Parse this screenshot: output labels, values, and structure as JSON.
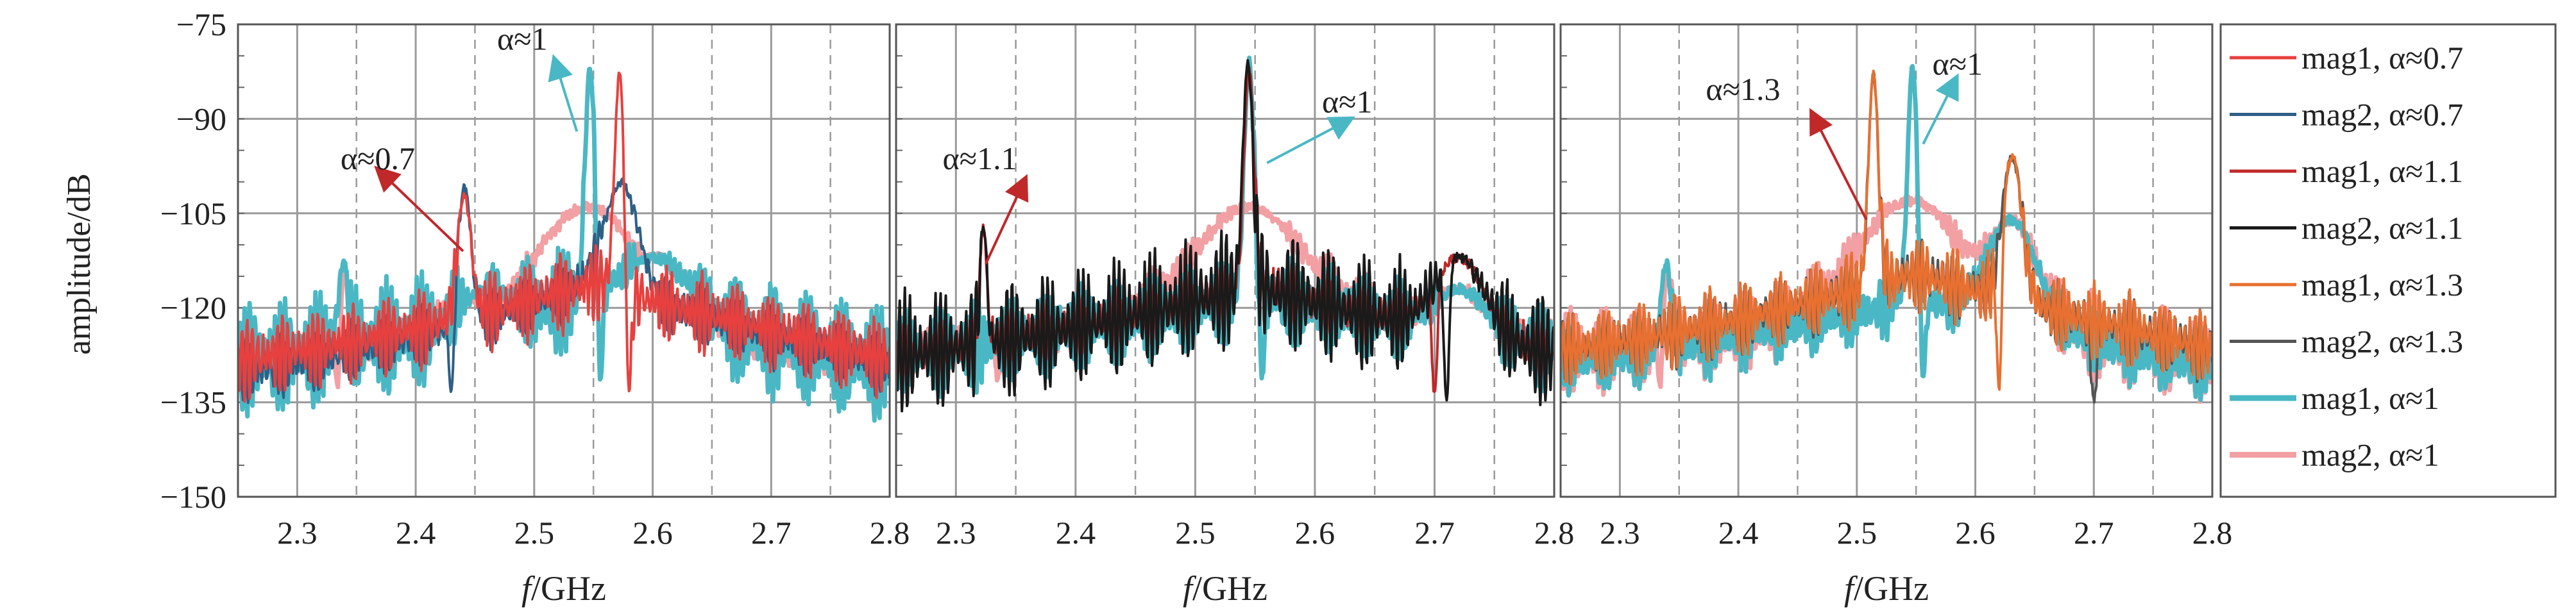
{
  "chart_data": {
    "type": "line",
    "ylabel": "amplitude/dB",
    "ylim": [
      -150,
      -75
    ],
    "yticks": [
      "−75",
      "−90",
      "−105",
      "−120",
      "−135",
      "−150"
    ],
    "yticks_values": [
      -75,
      -90,
      -105,
      -120,
      -135,
      -150
    ],
    "grid": true,
    "legend_position": "right",
    "colors": {
      "mag1_07": "#e8403e",
      "mag2_07": "#2f5f86",
      "mag1_11": "#c0282a",
      "mag2_11": "#1a1a1a",
      "mag1_13": "#e87030",
      "mag2_13": "#555555",
      "mag1_1": "#4ab8c4",
      "mag2_1": "#f2a0a4"
    },
    "legend": [
      {
        "label": "mag1, α≈0.7",
        "color": "#e8403e"
      },
      {
        "label": "mag2, α≈0.7",
        "color": "#2f5f86"
      },
      {
        "label": "mag1, α≈1.1",
        "color": "#c0282a"
      },
      {
        "label": "mag2, α≈1.1",
        "color": "#1a1a1a"
      },
      {
        "label": "mag1, α≈1.3",
        "color": "#e87030"
      },
      {
        "label": "mag2, α≈1.3",
        "color": "#555555"
      },
      {
        "label": "mag1, α≈1",
        "color": "#4ab8c4"
      },
      {
        "label": "mag2, α≈1",
        "color": "#f2a0a4"
      }
    ],
    "panels": [
      {
        "xlabel_italic": "f",
        "xlabel_unit": "/GHz",
        "xlim": [
          2.25,
          2.8
        ],
        "xticks": [
          "2.3",
          "2.4",
          "2.5",
          "2.6",
          "2.7",
          "2.8"
        ],
        "xticks_values": [
          2.3,
          2.4,
          2.5,
          2.6,
          2.7,
          2.8
        ],
        "annotations": [
          {
            "text": "α≈0.7",
            "x": 2.368,
            "y": -98,
            "tip_x": 2.368,
            "tip_y": -98,
            "from_x": 2.44,
            "from_y": -111,
            "color": "#c0282a"
          },
          {
            "text": "α≈1",
            "x": 2.49,
            "y": -79,
            "tip_x": 2.517,
            "tip_y": -80.5,
            "from_x": 2.536,
            "from_y": -92,
            "color": "#4ab8c4"
          }
        ],
        "series": [
          {
            "key": "mag2_1",
            "width": 7,
            "peaks": [
              [
                2.339,
                -113,
                0.006
              ],
              [
                2.545,
                -104,
                0.06
              ],
              [
                2.44,
                -118,
                0.03
              ],
              [
                2.6,
                -112,
                0.04
              ]
            ],
            "base": [
              -126,
              -118,
              -128
            ],
            "ripple": 5,
            "dip": [
              2.334,
              -132
            ]
          },
          {
            "key": "mag1_1",
            "width": 7,
            "peaks": [
              [
                2.339,
                -113,
                0.006
              ],
              [
                2.547,
                -82,
                0.006
              ],
              [
                2.46,
                -117,
                0.03
              ],
              [
                2.6,
                -112,
                0.04
              ]
            ],
            "base": [
              -125,
              -115,
              -126
            ],
            "ripple": 7,
            "dip": [
              2.556,
              -131
            ]
          },
          {
            "key": "mag2_07",
            "width": 4,
            "peaks": [
              [
                2.441,
                -101,
                0.008
              ],
              [
                2.573,
                -100,
                0.02
              ]
            ],
            "base": [
              -127,
              -113,
              -126
            ],
            "ripple": 6,
            "dip": [
              2.43,
              -133
            ]
          },
          {
            "key": "mag1_07",
            "width": 4,
            "peaks": [
              [
                2.441,
                -102,
                0.008
              ],
              [
                2.572,
                -83,
                0.006
              ]
            ],
            "base": [
              -125,
              -113,
              -125
            ],
            "ripple": 6,
            "dip": [
              2.58,
              -133
            ]
          }
        ]
      },
      {
        "xlabel_italic": "f",
        "xlabel_unit": "/GHz",
        "xlim": [
          2.25,
          2.8
        ],
        "xticks": [
          "2.3",
          "2.4",
          "2.5",
          "2.6",
          "2.7",
          "2.8"
        ],
        "xticks_values": [
          2.3,
          2.4,
          2.5,
          2.6,
          2.7,
          2.8
        ],
        "annotations": [
          {
            "text": "α≈1.1",
            "x": 2.32,
            "y": -98,
            "tip_x": 2.358,
            "tip_y": -99.5,
            "from_x": 2.325,
            "from_y": -113,
            "color": "#c0282a"
          },
          {
            "text": "α≈1",
            "x": 2.627,
            "y": -89,
            "tip_x": 2.63,
            "tip_y": -90,
            "from_x": 2.56,
            "from_y": -97,
            "color": "#4ab8c4"
          }
        ],
        "series": [
          {
            "key": "mag2_1",
            "width": 7,
            "peaks": [
              [
                2.545,
                -104,
                0.06
              ],
              [
                2.72,
                -117,
                0.03
              ]
            ],
            "base": [
              -124,
              -116,
              -123
            ],
            "ripple": 5,
            "dip": [
              2.335,
              -131
            ]
          },
          {
            "key": "mag1_1",
            "width": 7,
            "peaks": [
              [
                2.545,
                -81,
                0.006
              ],
              [
                2.72,
                -117,
                0.03
              ]
            ],
            "base": [
              -124,
              -115,
              -123
            ],
            "ripple": 6,
            "dip": [
              2.556,
              -131
            ]
          },
          {
            "key": "mag1_11",
            "width": 4,
            "peaks": [
              [
                2.323,
                -107,
                0.004
              ],
              [
                2.545,
                -82,
                0.006
              ],
              [
                2.72,
                -112,
                0.03
              ]
            ],
            "base": [
              -124,
              -113,
              -124
            ],
            "ripple": 7,
            "dip": [
              2.7,
              -134
            ]
          },
          {
            "key": "mag2_11",
            "width": 4,
            "peaks": [
              [
                2.323,
                -107,
                0.004
              ],
              [
                2.544,
                -81,
                0.006
              ],
              [
                2.72,
                -112,
                0.03
              ]
            ],
            "base": [
              -124,
              -113,
              -124
            ],
            "ripple": 7,
            "dip": [
              2.71,
              -135
            ]
          }
        ]
      },
      {
        "xlabel_italic": "f",
        "xlabel_unit": "/GHz",
        "xlim": [
          2.25,
          2.8
        ],
        "xticks": [
          "2.3",
          "2.4",
          "2.5",
          "2.6",
          "2.7",
          "2.8"
        ],
        "xticks_values": [
          2.3,
          2.4,
          2.5,
          2.6,
          2.7,
          2.8
        ],
        "annotations": [
          {
            "text": "α≈1.3",
            "x": 2.404,
            "y": -87,
            "tip_x": 2.462,
            "tip_y": -89,
            "from_x": 2.508,
            "from_y": -106,
            "color": "#c0282a"
          },
          {
            "text": "α≈1",
            "x": 2.585,
            "y": -83,
            "tip_x": 2.584,
            "tip_y": -83.5,
            "from_x": 2.556,
            "from_y": -94,
            "color": "#4ab8c4"
          }
        ],
        "series": [
          {
            "key": "mag2_1",
            "width": 7,
            "peaks": [
              [
                2.339,
                -113,
                0.006
              ],
              [
                2.545,
                -103,
                0.06
              ],
              [
                2.63,
                -106,
                0.03
              ]
            ],
            "base": [
              -125,
              -117,
              -126
            ],
            "ripple": 5,
            "dip": [
              2.334,
              -132
            ]
          },
          {
            "key": "mag1_1",
            "width": 7,
            "peaks": [
              [
                2.339,
                -113,
                0.006
              ],
              [
                2.547,
                -82,
                0.006
              ],
              [
                2.63,
                -106,
                0.03
              ]
            ],
            "base": [
              -125,
              -115,
              -126
            ],
            "ripple": 7,
            "dip": [
              2.556,
              -131
            ]
          },
          {
            "key": "mag2_13",
            "width": 4,
            "peaks": [
              [
                2.514,
                -83,
                0.006
              ],
              [
                2.631,
                -96,
                0.012
              ]
            ],
            "base": [
              -124,
              -112,
              -124
            ],
            "ripple": 5,
            "dip": [
              2.7,
              -135
            ]
          },
          {
            "key": "mag1_13",
            "width": 4,
            "peaks": [
              [
                2.514,
                -83,
                0.006
              ],
              [
                2.631,
                -96,
                0.012
              ]
            ],
            "base": [
              -124,
              -112,
              -124
            ],
            "ripple": 5,
            "dip": [
              2.62,
              -133
            ]
          }
        ]
      }
    ]
  }
}
